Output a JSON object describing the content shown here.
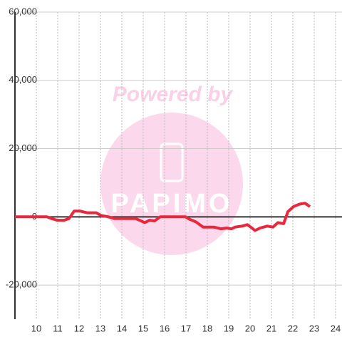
{
  "chart_data": {
    "type": "line",
    "watermark": [
      "Powered by",
      "PAPIMO"
    ],
    "x": [
      9.0,
      10.0,
      10.5,
      10.7,
      10.97,
      11.3,
      11.53,
      11.77,
      12.03,
      12.37,
      12.8,
      13.03,
      13.37,
      13.63,
      14.3,
      14.63,
      14.83,
      15.07,
      15.3,
      15.53,
      15.8,
      16.97,
      17.13,
      17.47,
      17.8,
      18.3,
      18.63,
      18.9,
      19.13,
      19.3,
      19.63,
      19.87,
      20.03,
      20.23,
      20.47,
      20.8,
      21.07,
      21.3,
      21.57,
      21.77,
      22.03,
      22.3,
      22.57,
      22.8
    ],
    "series": [
      {
        "color": "#e8283c",
        "values": [
          0,
          0,
          0,
          -500,
          -1000,
          -1000,
          -500,
          1700,
          1700,
          1200,
          1200,
          400,
          0,
          -500,
          -500,
          -500,
          -1000,
          -1700,
          -1000,
          -1200,
          0,
          0,
          -600,
          -1500,
          -3000,
          -3000,
          -3500,
          -3300,
          -3500,
          -3000,
          -2700,
          -2300,
          -3000,
          -4000,
          -3300,
          -2700,
          -3000,
          -1700,
          -2000,
          1500,
          3000,
          3700,
          4000,
          3000
        ]
      }
    ],
    "xlim": [
      9,
      24.3
    ],
    "xticks": [
      10,
      11,
      12,
      13,
      14,
      15,
      16,
      17,
      18,
      19,
      20,
      21,
      22,
      23,
      24
    ],
    "ylim": [
      -30000,
      60000
    ],
    "yticks": [
      {
        "value": -20000,
        "label": "-20,000"
      },
      0,
      {
        "value": 20000,
        "label": "20,000"
      },
      {
        "value": 40000,
        "label": "40,000"
      },
      {
        "value": 60000,
        "label": "60,000"
      }
    ],
    "grid": true
  }
}
